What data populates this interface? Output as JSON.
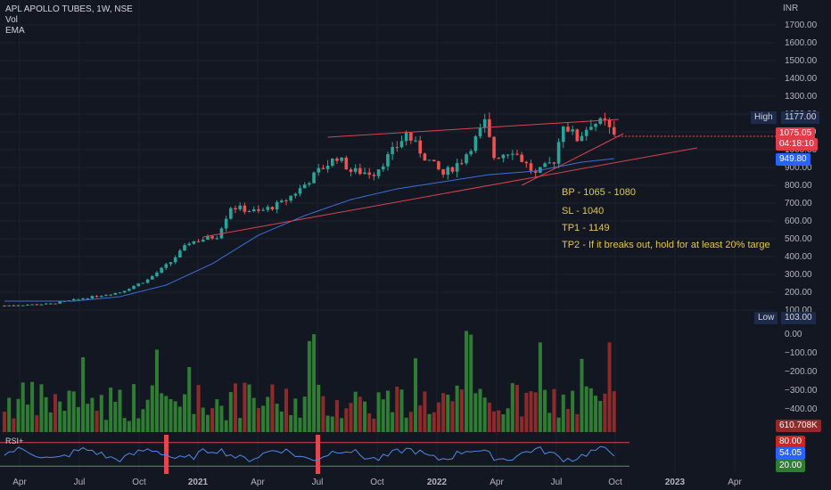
{
  "legend": {
    "title": "APL APOLLO TUBES, 1W, NSE",
    "vol": "Vol",
    "ema": "EMA"
  },
  "currency": "INR",
  "notes": [
    "BP - 1065 - 1080",
    "SL - 1040",
    "TP1 - 1149",
    "TP2 - If it breaks out, hold for at least 20% targe"
  ],
  "badges": {
    "high_label": "High",
    "high_value": "1177.00",
    "low_label": "Low",
    "low_value": "103.00",
    "price": "1075.05",
    "countdown": "04:18:10",
    "ema_value": "949.80",
    "vol_value": "610.708K",
    "rsi_upper": "80.00",
    "rsi_value": "54.05",
    "rsi_lower": "20.00"
  },
  "rsi_label": "RSI+",
  "colors": {
    "up": "#26a69a",
    "down": "#ef5350",
    "ema": "#3d6fd6",
    "trend": "#d9434f",
    "note": "#e0c64f",
    "vol_up": "#2e7d32",
    "vol_down": "#8e2a2a"
  },
  "chart_data": {
    "type": "candlestick",
    "price_axis": {
      "ticks": [
        "1700.00",
        "1600.00",
        "1500.00",
        "1400.00",
        "1300.00",
        "1200.00",
        "1100.00",
        "1000.00",
        "900.00",
        "800.00",
        "700.00",
        "600.00",
        "500.00",
        "400.00",
        "300.00",
        "200.00",
        "100.00"
      ],
      "range": [
        100,
        1700
      ]
    },
    "volume_axis": {
      "ticks": [
        "0.00",
        "−100.00",
        "−200.00",
        "−300.00",
        "−400.00",
        "100.00"
      ]
    },
    "time_axis": {
      "ticks": [
        "Apr",
        "Jul",
        "Oct",
        "2021",
        "Apr",
        "Jul",
        "Oct",
        "2022",
        "Apr",
        "Jul",
        "Oct",
        "2023",
        "Apr"
      ]
    },
    "price_anchors": [
      {
        "w": 0,
        "v": 125
      },
      {
        "w": 10,
        "v": 135
      },
      {
        "w": 18,
        "v": 170
      },
      {
        "w": 25,
        "v": 200
      },
      {
        "w": 31,
        "v": 270
      },
      {
        "w": 36,
        "v": 370
      },
      {
        "w": 40,
        "v": 480
      },
      {
        "w": 46,
        "v": 515
      },
      {
        "w": 49,
        "v": 680
      },
      {
        "w": 55,
        "v": 650
      },
      {
        "w": 60,
        "v": 700
      },
      {
        "w": 64,
        "v": 780
      },
      {
        "w": 68,
        "v": 880
      },
      {
        "w": 72,
        "v": 960
      },
      {
        "w": 75,
        "v": 880
      },
      {
        "w": 80,
        "v": 870
      },
      {
        "w": 85,
        "v": 1020
      },
      {
        "w": 87,
        "v": 1090
      },
      {
        "w": 91,
        "v": 960
      },
      {
        "w": 95,
        "v": 860
      },
      {
        "w": 99,
        "v": 940
      },
      {
        "w": 102,
        "v": 1060
      },
      {
        "w": 104,
        "v": 1150
      },
      {
        "w": 106,
        "v": 960
      },
      {
        "w": 110,
        "v": 1000
      },
      {
        "w": 115,
        "v": 860
      },
      {
        "w": 119,
        "v": 940
      },
      {
        "w": 121,
        "v": 1150
      },
      {
        "w": 124,
        "v": 1060
      },
      {
        "w": 127,
        "v": 1150
      },
      {
        "w": 130,
        "v": 1150
      },
      {
        "w": 132,
        "v": 1075
      }
    ],
    "ema": [
      {
        "w": 0,
        "v": 150
      },
      {
        "w": 15,
        "v": 150
      },
      {
        "w": 25,
        "v": 175
      },
      {
        "w": 35,
        "v": 240
      },
      {
        "w": 45,
        "v": 360
      },
      {
        "w": 55,
        "v": 520
      },
      {
        "w": 65,
        "v": 630
      },
      {
        "w": 75,
        "v": 720
      },
      {
        "w": 85,
        "v": 780
      },
      {
        "w": 95,
        "v": 820
      },
      {
        "w": 105,
        "v": 860
      },
      {
        "w": 115,
        "v": 880
      },
      {
        "w": 125,
        "v": 930
      },
      {
        "w": 132,
        "v": 950
      }
    ],
    "trendlines": [
      {
        "from": {
          "w": 43,
          "v": 510
        },
        "to": {
          "w": 150,
          "v": 1010
        }
      },
      {
        "from": {
          "w": 70,
          "v": 1070
        },
        "to": {
          "w": 133,
          "v": 1170
        }
      },
      {
        "from": {
          "w": 112,
          "v": 800
        },
        "to": {
          "w": 134,
          "v": 1090
        }
      }
    ],
    "rsi": {
      "upper": 80,
      "lower": 20,
      "value": 54.05
    },
    "weeks": 133
  }
}
